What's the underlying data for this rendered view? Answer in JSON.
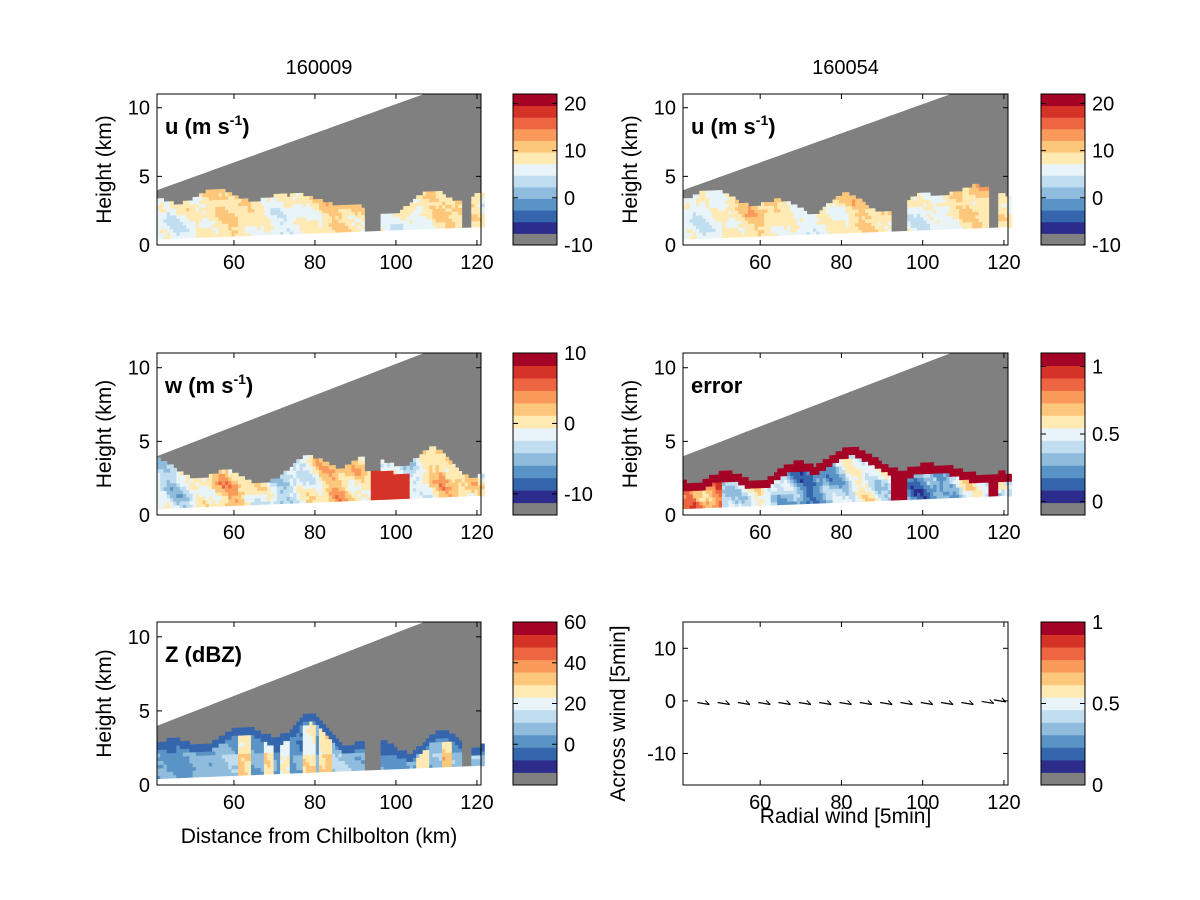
{
  "figure": {
    "colors": {
      "gray": "#808080",
      "palette": [
        "#808080",
        "#2c2c8c",
        "#3566ad",
        "#5a93c6",
        "#8fbcdc",
        "#c0def0",
        "#e8f4f8",
        "#feeab2",
        "#fdc77b",
        "#f99a5b",
        "#ee6641",
        "#d53228",
        "#a50326"
      ]
    },
    "panels": [
      {
        "id": "u-left",
        "title": "160009",
        "in_label": "u (m s",
        "in_label_sup": "-1",
        "in_label_tail": ")",
        "ylabel": "Height (km)",
        "xlabel": "",
        "field": "u",
        "cbar": {
          "min": -10,
          "max": 22,
          "ticks": [
            {
              "v": 20,
              "t": "20"
            },
            {
              "v": 10,
              "t": "10"
            },
            {
              "v": 0,
              "t": "0"
            },
            {
              "v": -10,
              "t": "-10"
            }
          ]
        }
      },
      {
        "id": "u-right",
        "title": "160054",
        "in_label": "u (m s",
        "in_label_sup": "-1",
        "in_label_tail": ")",
        "ylabel": "Height (km)",
        "xlabel": "",
        "field": "u",
        "cbar": {
          "min": -10,
          "max": 22,
          "ticks": [
            {
              "v": 20,
              "t": "20"
            },
            {
              "v": 10,
              "t": "10"
            },
            {
              "v": 0,
              "t": "0"
            },
            {
              "v": -10,
              "t": "-10"
            }
          ]
        }
      },
      {
        "id": "w-left",
        "title": "",
        "in_label": "w (m s",
        "in_label_sup": "-1",
        "in_label_tail": ")",
        "ylabel": "Height (km)",
        "xlabel": "",
        "field": "w",
        "cbar": {
          "min": -13,
          "max": 10,
          "ticks": [
            {
              "v": 10,
              "t": "10"
            },
            {
              "v": 0,
              "t": "0"
            },
            {
              "v": -10,
              "t": "-10"
            }
          ]
        }
      },
      {
        "id": "error",
        "title": "",
        "in_label": "error",
        "in_label_sup": "",
        "in_label_tail": "",
        "ylabel": "Height (km)",
        "xlabel": "",
        "field": "err",
        "cbar": {
          "min": -0.1,
          "max": 1.1,
          "ticks": [
            {
              "v": 1,
              "t": "1"
            },
            {
              "v": 0.5,
              "t": "0.5"
            },
            {
              "v": 0,
              "t": "0"
            }
          ]
        }
      },
      {
        "id": "z-left",
        "title": "",
        "in_label": "Z (dBZ)",
        "in_label_sup": "",
        "in_label_tail": "",
        "ylabel": "Height (km)",
        "xlabel": "Distance from Chilbolton (km)",
        "field": "z",
        "cbar": {
          "min": -20,
          "max": 60,
          "ticks": [
            {
              "v": 60,
              "t": "60"
            },
            {
              "v": 40,
              "t": "40"
            },
            {
              "v": 20,
              "t": "20"
            },
            {
              "v": 0,
              "t": "0"
            }
          ]
        }
      }
    ]
  },
  "chart_data": [
    {
      "type": "heatmap",
      "title": "160009",
      "panel_label": "u (m s-1)",
      "xlabel": "",
      "ylabel": "Height (km)",
      "xlim": [
        41,
        121
      ],
      "ylim": [
        0,
        11
      ],
      "xticks": [
        60,
        80,
        100,
        120
      ],
      "yticks": [
        0,
        5,
        10
      ],
      "colorbar": {
        "min": -10,
        "max": 22,
        "ticks": [
          20,
          10,
          0,
          -10
        ]
      },
      "description_values": {
        "echo_top_km": [
          3.0,
          4.5
        ],
        "typical_u": [
          0,
          12
        ]
      }
    },
    {
      "type": "heatmap",
      "title": "160054",
      "panel_label": "u (m s-1)",
      "xlabel": "",
      "ylabel": "Height (km)",
      "xlim": [
        41,
        121
      ],
      "ylim": [
        0,
        11
      ],
      "xticks": [
        60,
        80,
        100,
        120
      ],
      "yticks": [
        0,
        5,
        10
      ],
      "colorbar": {
        "min": -10,
        "max": 22,
        "ticks": [
          20,
          10,
          0,
          -10
        ]
      }
    },
    {
      "type": "heatmap",
      "panel_label": "w (m s-1)",
      "xlabel": "",
      "ylabel": "Height (km)",
      "xlim": [
        41,
        121
      ],
      "ylim": [
        0,
        11
      ],
      "xticks": [
        60,
        80,
        100,
        120
      ],
      "yticks": [
        0,
        5,
        10
      ],
      "colorbar": {
        "min": -13,
        "max": 10,
        "ticks": [
          10,
          0,
          -10
        ]
      }
    },
    {
      "type": "heatmap",
      "panel_label": "error",
      "xlabel": "",
      "ylabel": "Height (km)",
      "xlim": [
        41,
        121
      ],
      "ylim": [
        0,
        11
      ],
      "xticks": [
        60,
        80,
        100,
        120
      ],
      "yticks": [
        0,
        5,
        10
      ],
      "colorbar": {
        "min": -0.1,
        "max": 1.1,
        "ticks": [
          1,
          0.5,
          0
        ]
      }
    },
    {
      "type": "heatmap",
      "panel_label": "Z (dBZ)",
      "xlabel": "Distance from Chilbolton (km)",
      "ylabel": "Height (km)",
      "xlim": [
        41,
        121
      ],
      "ylim": [
        0,
        11
      ],
      "xticks": [
        60,
        80,
        100,
        120
      ],
      "yticks": [
        0,
        5,
        10
      ],
      "colorbar": {
        "min": -20,
        "max": 60,
        "ticks": [
          60,
          40,
          20,
          0
        ]
      }
    },
    {
      "type": "scatter",
      "xlabel": "Radial wind [5min]",
      "ylabel": "Across wind [5min]",
      "xlim": [
        41,
        121
      ],
      "ylim": [
        -16,
        15
      ],
      "xticks": [
        60,
        80,
        100,
        120
      ],
      "yticks": [
        10,
        0,
        -10
      ],
      "x": [
        46,
        51,
        56,
        61,
        66,
        71,
        76,
        81,
        86,
        91,
        96,
        101,
        106,
        111,
        116,
        119
      ],
      "y": [
        -0.5,
        -0.5,
        -0.5,
        -0.5,
        -0.5,
        -0.5,
        -0.5,
        -0.5,
        -0.5,
        -0.5,
        -0.5,
        -0.5,
        -0.5,
        -0.5,
        -0.3,
        0
      ],
      "colorbar": {
        "min": 0,
        "max": 1,
        "ticks": [
          1,
          0.5,
          0
        ]
      }
    }
  ],
  "bottom_right": {
    "xlabel": "Radial wind [5min]",
    "ylabel": "Across wind [5min]",
    "xticks": [
      {
        "v": 60,
        "t": "60"
      },
      {
        "v": 80,
        "t": "80"
      },
      {
        "v": 100,
        "t": "100"
      },
      {
        "v": 120,
        "t": "120"
      }
    ],
    "yticks": [
      {
        "v": 10,
        "t": "10"
      },
      {
        "v": 0,
        "t": "0"
      },
      {
        "v": -10,
        "t": "-10"
      }
    ],
    "cbar_ticks": [
      {
        "v": 1,
        "t": "1"
      },
      {
        "v": 0.5,
        "t": "0.5"
      },
      {
        "v": 0,
        "t": "0"
      }
    ]
  },
  "xticks": [
    {
      "v": 60,
      "t": "60"
    },
    {
      "v": 80,
      "t": "80"
    },
    {
      "v": 100,
      "t": "100"
    },
    {
      "v": 120,
      "t": "120"
    }
  ],
  "yticks": [
    {
      "v": 0,
      "t": "0"
    },
    {
      "v": 5,
      "t": "5"
    },
    {
      "v": 10,
      "t": "10"
    }
  ]
}
